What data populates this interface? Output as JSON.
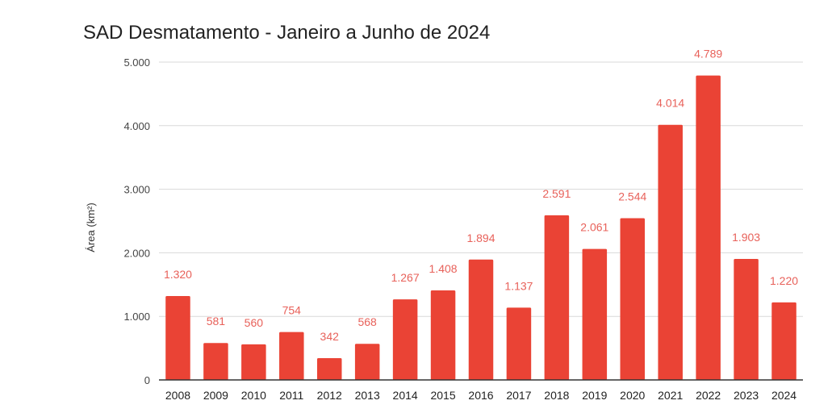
{
  "chart_data": {
    "type": "bar",
    "title": "SAD Desmatamento - Janeiro a Junho de 2024",
    "xlabel": "",
    "ylabel": "Área (km²)",
    "ylim": [
      0,
      5000
    ],
    "yticks": [
      0,
      1000,
      2000,
      3000,
      4000,
      5000
    ],
    "ytick_labels": [
      "0",
      "1.000",
      "2.000",
      "3.000",
      "4.000",
      "5.000"
    ],
    "grid": true,
    "legend": "none",
    "bar_color": "#ea4335",
    "label_color": "#e8615a",
    "categories": [
      "2008",
      "2009",
      "2010",
      "2011",
      "2012",
      "2013",
      "2014",
      "2015",
      "2016",
      "2017",
      "2018",
      "2019",
      "2020",
      "2021",
      "2022",
      "2023",
      "2024"
    ],
    "values": [
      1320,
      581,
      560,
      754,
      342,
      568,
      1267,
      1408,
      1894,
      1137,
      2591,
      2061,
      2544,
      4014,
      4789,
      1903,
      1220
    ],
    "data_labels": [
      "1.320",
      "581",
      "560",
      "754",
      "342",
      "568",
      "1.267",
      "1.408",
      "1.894",
      "1.137",
      "2.591",
      "2.061",
      "2.544",
      "4.014",
      "4.789",
      "1.903",
      "1.220"
    ]
  }
}
